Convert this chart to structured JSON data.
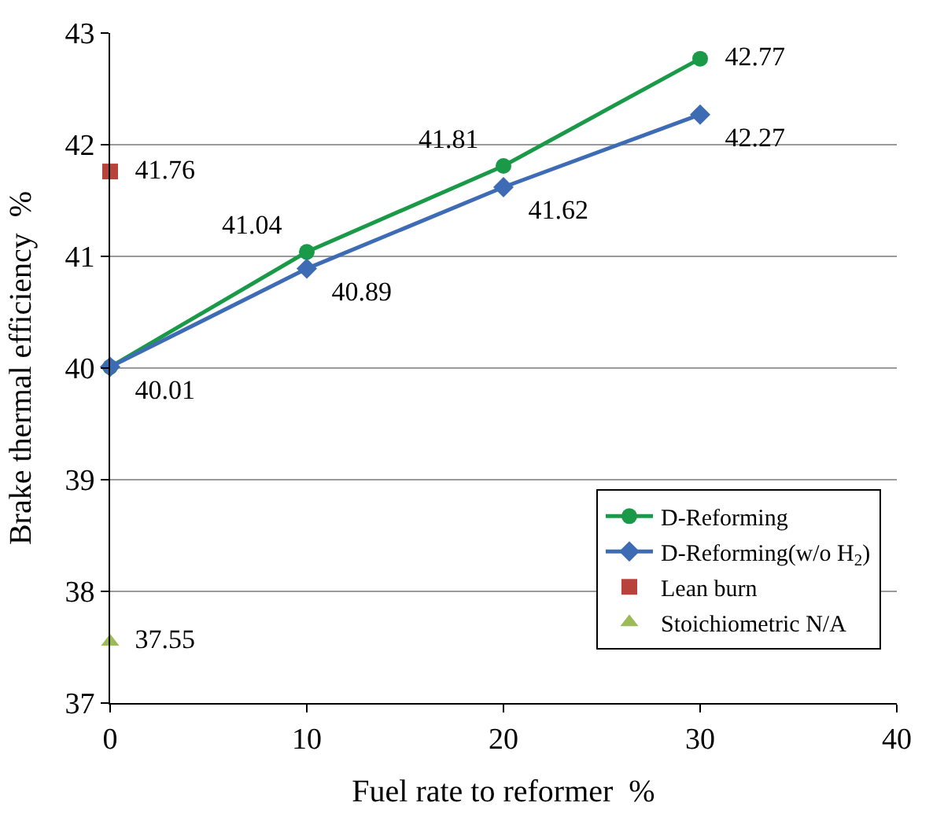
{
  "chart_data": {
    "type": "line",
    "xlabel": "Fuel rate to reformer  %",
    "ylabel": "Brake thermal efficiency  %",
    "xlim": [
      0,
      40
    ],
    "xticks": [
      0,
      10,
      20,
      30,
      40
    ],
    "ylim": [
      37,
      43
    ],
    "yticks": [
      37,
      38,
      39,
      40,
      41,
      42,
      43
    ],
    "grid": "y",
    "legend": "bottom right",
    "line_style": "solid",
    "series": [
      {
        "name": "D-Reforming",
        "marker": "circle",
        "color": "#1a9a48",
        "x": [
          0,
          10,
          20,
          30
        ],
        "values": [
          40.01,
          41.04,
          41.81,
          42.77
        ],
        "value_labels": [
          null,
          "41.04",
          "41.81",
          "42.77"
        ]
      },
      {
        "name": "D-Reforming(w/o H$_{2}$)",
        "marker": "diamond",
        "color": "#3e6cb4",
        "x": [
          0,
          10,
          20,
          30
        ],
        "values": [
          40.01,
          40.89,
          41.62,
          42.27
        ],
        "value_labels": [
          "40.01",
          "40.89",
          "41.62",
          "42.27"
        ]
      },
      {
        "name": "Lean burn",
        "type": "scatter",
        "marker": "square",
        "color": "#b8433c",
        "x": [
          0
        ],
        "values": [
          41.76
        ],
        "value_labels": [
          "41.76"
        ]
      },
      {
        "name": "Stoichiometric N/A",
        "type": "scatter",
        "marker": "triangle",
        "color": "#9bbb59",
        "x": [
          0
        ],
        "values": [
          37.55
        ],
        "value_labels": [
          "37.55"
        ]
      }
    ]
  }
}
